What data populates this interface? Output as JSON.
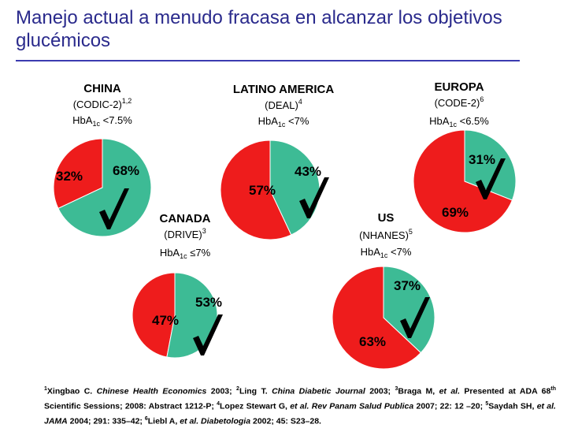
{
  "title": "Manejo actual a menudo fracasa en alcanzar los objetivos glucémicos",
  "colors": {
    "fail": "#ee1c1c",
    "success": "#3dbb95",
    "check": "#000000",
    "title": "#2a2a8c",
    "rule": "#3b3bb0"
  },
  "chart_data": [
    {
      "type": "pie",
      "region": "CHINA",
      "study": "(CODIC-2)1,2",
      "target": "HbA1c <7.5%",
      "slices": [
        {
          "label": "32%",
          "value": 32,
          "role": "fail"
        },
        {
          "label": "68%",
          "value": 68,
          "role": "success"
        }
      ]
    },
    {
      "type": "pie",
      "region": "LATINO AMERICA",
      "study": "(DEAL)4",
      "target": "HbA1c <7%",
      "slices": [
        {
          "label": "57%",
          "value": 57,
          "role": "fail"
        },
        {
          "label": "43%",
          "value": 43,
          "role": "success"
        }
      ]
    },
    {
      "type": "pie",
      "region": "EUROPA",
      "study": "(CODE-2)6",
      "target": "HbA1c <6.5%",
      "slices": [
        {
          "label": "69%",
          "value": 69,
          "role": "fail"
        },
        {
          "label": "31%",
          "value": 31,
          "role": "success"
        }
      ]
    },
    {
      "type": "pie",
      "region": "CANADA",
      "study": "(DRIVE)3",
      "target": "HbA1c ≤7%",
      "slices": [
        {
          "label": "47%",
          "value": 47,
          "role": "fail"
        },
        {
          "label": "53%",
          "value": 53,
          "role": "success"
        }
      ]
    },
    {
      "type": "pie",
      "region": "US",
      "study": "(NHANES)5",
      "target": "HbA1c <7%",
      "slices": [
        {
          "label": "63%",
          "value": 63,
          "role": "fail"
        },
        {
          "label": "37%",
          "value": 37,
          "role": "success"
        }
      ]
    }
  ],
  "footnote": {
    "r1n": "1",
    "r1": "Xingbao C. ",
    "r1j": "Chinese Health Economics",
    "r1y": " 2003; ",
    "r2n": "2",
    "r2": "Ling T. ",
    "r2j": "China Diabetic Journal",
    "r2y": " 2003; ",
    "r3n": "3",
    "r3": "Braga M, ",
    "r3e": "et al.",
    "r3y": " Presented at ADA 68",
    "r3sup": "th",
    "r3z": " Scientific Sessions; 2008: Abstract 1212-P; ",
    "r4n": "4",
    "r4": "Lopez Stewart G, ",
    "r4e": "et al. Rev Panam Salud Publica",
    "r4y": " 2007; 22: 12 –20; ",
    "r5n": "5",
    "r5": "Saydah SH, ",
    "r5e": "et al. JAMA",
    "r5y": " 2004; 291: 335–42; ",
    "r6n": "6",
    "r6": "Liebl A, ",
    "r6e": "et al. Diabetologia",
    "r6y": " 2002; 45: S23–28."
  }
}
